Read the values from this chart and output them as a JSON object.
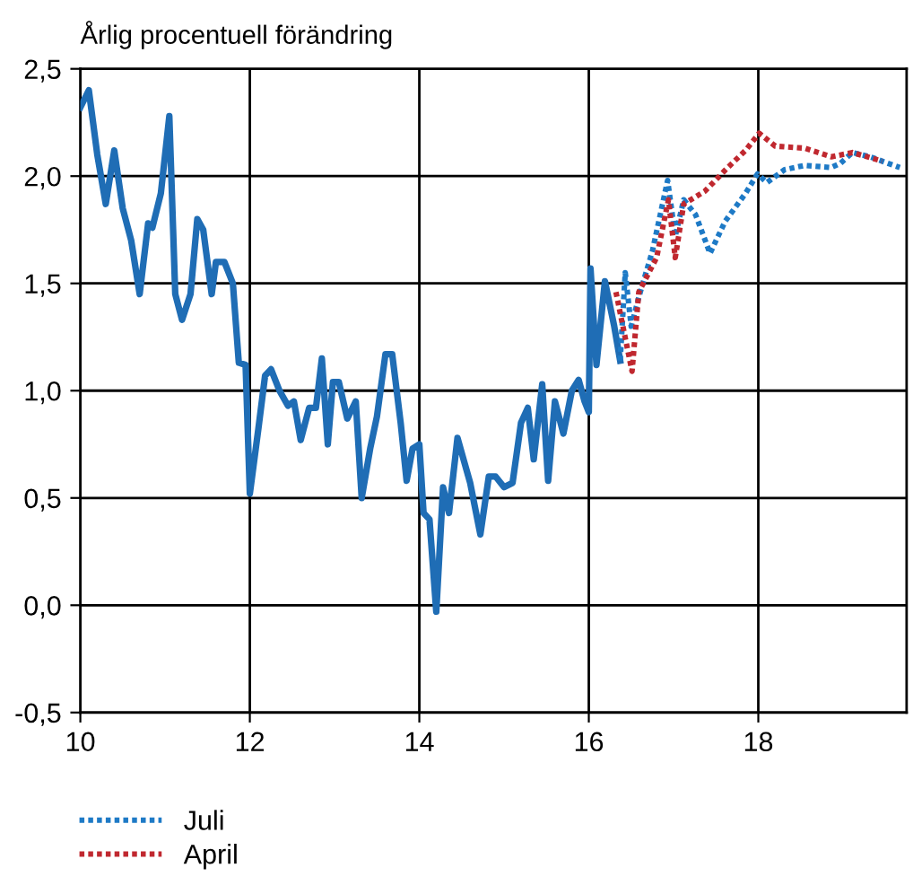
{
  "chart_data": {
    "type": "line",
    "subtitle": "Årlig procentuell förändring",
    "xlim": [
      10,
      19.75
    ],
    "xticks": [
      10,
      12,
      14,
      16,
      18
    ],
    "ylim": [
      -0.5,
      2.5
    ],
    "yticks": [
      {
        "value": -0.5,
        "label": "-0,5"
      },
      {
        "value": 0,
        "label": "0,0"
      },
      {
        "value": 0.5,
        "label": "0,5"
      },
      {
        "value": 1,
        "label": "1,0"
      },
      {
        "value": 1.5,
        "label": "1,5"
      },
      {
        "value": 2,
        "label": "2,0"
      },
      {
        "value": 2.5,
        "label": "2,5"
      }
    ],
    "grid": true,
    "legend": "bottom left",
    "marker": "none",
    "series": [
      {
        "color": "#1f6db5",
        "line_style": "solid",
        "x": [
          10.0,
          10.1,
          10.2,
          10.3,
          10.4,
          10.5,
          10.6,
          10.7,
          10.8,
          10.85,
          10.95,
          11.05,
          11.12,
          11.2,
          11.3,
          11.38,
          11.45,
          11.55,
          11.6,
          11.7,
          11.8,
          11.87,
          11.95,
          12.0,
          12.1,
          12.18,
          12.25,
          12.35,
          12.45,
          12.52,
          12.6,
          12.7,
          12.78,
          12.85,
          12.92,
          12.98,
          13.05,
          13.15,
          13.25,
          13.32,
          13.42,
          13.5,
          13.6,
          13.68,
          13.78,
          13.85,
          13.92,
          14.0,
          14.05,
          14.12,
          14.2,
          14.28,
          14.35,
          14.45,
          14.6,
          14.72,
          14.82,
          14.9,
          15.0,
          15.1,
          15.2,
          15.28,
          15.35,
          15.45,
          15.52,
          15.6,
          15.7,
          15.8,
          15.88,
          15.95,
          16.0,
          16.02,
          16.09,
          16.19,
          16.3,
          16.37
        ],
        "values": [
          2.32,
          2.4,
          2.1,
          1.87,
          2.12,
          1.85,
          1.7,
          1.45,
          1.78,
          1.76,
          1.92,
          2.28,
          1.45,
          1.33,
          1.45,
          1.8,
          1.75,
          1.45,
          1.6,
          1.6,
          1.5,
          1.13,
          1.12,
          0.52,
          0.82,
          1.07,
          1.1,
          1.0,
          0.93,
          0.95,
          0.77,
          0.92,
          0.92,
          1.15,
          0.75,
          1.04,
          1.04,
          0.87,
          0.95,
          0.5,
          0.73,
          0.88,
          1.17,
          1.17,
          0.85,
          0.58,
          0.73,
          0.75,
          0.43,
          0.4,
          -0.03,
          0.55,
          0.43,
          0.78,
          0.57,
          0.33,
          0.6,
          0.6,
          0.55,
          0.57,
          0.85,
          0.92,
          0.68,
          1.03,
          0.58,
          0.95,
          0.8,
          1.0,
          1.05,
          0.95,
          0.9,
          1.57,
          1.12,
          1.51,
          1.3,
          1.14
        ]
      },
      {
        "name": "Juli",
        "color": "#1e7ac6",
        "line_style": "dotted",
        "x": [
          16.37,
          16.43,
          16.5,
          16.6,
          16.75,
          16.93,
          17.02,
          17.12,
          17.26,
          17.43,
          17.61,
          17.85,
          17.99,
          18.1,
          18.31,
          18.55,
          18.86,
          18.97,
          19.11,
          19.32,
          19.67
        ],
        "values": [
          1.14,
          1.55,
          1.3,
          1.45,
          1.65,
          1.98,
          1.72,
          1.89,
          1.82,
          1.64,
          1.79,
          1.92,
          2.01,
          1.97,
          2.03,
          2.05,
          2.04,
          2.06,
          2.11,
          2.09,
          2.04
        ]
      },
      {
        "name": "April",
        "color": "#c0282f",
        "line_style": "dotted",
        "x": [
          16.32,
          16.51,
          16.59,
          16.8,
          16.94,
          17.02,
          17.12,
          17.37,
          17.64,
          17.85,
          18.01,
          18.2,
          18.55,
          18.86,
          19.11,
          19.46
        ],
        "values": [
          1.46,
          1.09,
          1.46,
          1.62,
          1.89,
          1.62,
          1.87,
          1.93,
          2.04,
          2.12,
          2.2,
          2.14,
          2.13,
          2.09,
          2.11,
          2.07
        ]
      }
    ]
  }
}
